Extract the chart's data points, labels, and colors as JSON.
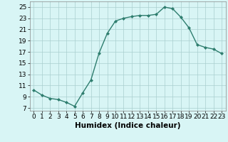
{
  "x": [
    0,
    1,
    2,
    3,
    4,
    5,
    6,
    7,
    8,
    9,
    10,
    11,
    12,
    13,
    14,
    15,
    16,
    17,
    18,
    19,
    20,
    21,
    22,
    23
  ],
  "y": [
    10.2,
    9.3,
    8.7,
    8.5,
    8.0,
    7.3,
    9.7,
    12.0,
    16.8,
    20.3,
    22.5,
    23.0,
    23.3,
    23.5,
    23.5,
    23.7,
    25.0,
    24.7,
    23.2,
    21.3,
    18.3,
    17.8,
    17.5,
    16.7
  ],
  "line_color": "#2e7d6e",
  "marker": "D",
  "marker_size": 2.0,
  "bg_color": "#d8f5f5",
  "grid_color": "#aacfcf",
  "xlabel": "Humidex (Indice chaleur)",
  "xlim": [
    -0.5,
    23.5
  ],
  "ylim": [
    6.5,
    26.0
  ],
  "yticks": [
    7,
    9,
    11,
    13,
    15,
    17,
    19,
    21,
    23,
    25
  ],
  "xticks": [
    0,
    1,
    2,
    3,
    4,
    5,
    6,
    7,
    8,
    9,
    10,
    11,
    12,
    13,
    14,
    15,
    16,
    17,
    18,
    19,
    20,
    21,
    22,
    23
  ],
  "xlabel_fontsize": 7.5,
  "tick_fontsize": 6.5,
  "linewidth": 1.0
}
